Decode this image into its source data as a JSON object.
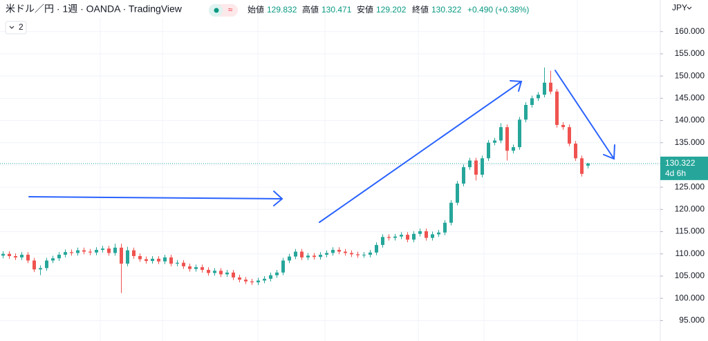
{
  "chart_data": {
    "type": "candlestick",
    "title": "米ドル／円 · 1週 · OANDA · TradingView",
    "badge": "≈",
    "pane_count": "2",
    "currency": "JPY",
    "ohlc_labels": [
      "始値",
      "高値",
      "安値",
      "終値"
    ],
    "change": "+0.490 (+0.38%)",
    "countdown": "4d 6h",
    "up_color": "#26a69a",
    "down_color": "#ef5350",
    "ylim": [
      90.4,
      167.1
    ],
    "yticks": [
      {
        "value": 95,
        "label": "95.000"
      },
      {
        "value": 100,
        "label": "100.000"
      },
      {
        "value": 105,
        "label": "105.000"
      },
      {
        "value": 110,
        "label": "110.000"
      },
      {
        "value": 115,
        "label": "115.000"
      },
      {
        "value": 120,
        "label": "120.000"
      },
      {
        "value": 125,
        "label": "125.000"
      },
      {
        "value": 130,
        "label": "130.000"
      },
      {
        "value": 135,
        "label": "135.000"
      },
      {
        "value": 140,
        "label": "140.000"
      },
      {
        "value": 145,
        "label": "145.000"
      },
      {
        "value": 150,
        "label": "150.000"
      },
      {
        "value": 155,
        "label": "155.000"
      },
      {
        "value": 160,
        "label": "160.000"
      }
    ],
    "grid": true,
    "open": [
      109.6,
      110.0,
      109.5,
      109.2,
      109.8,
      108.5,
      106.5,
      106.8,
      108.5,
      109.0,
      109.8,
      110.4,
      110.2,
      110.8,
      110.5,
      110.3,
      110.9,
      111.2,
      110.2,
      111.4,
      107.8,
      110.8,
      109.5,
      108.8,
      108.4,
      108.9,
      108.3,
      109.2,
      107.8,
      108.0,
      107.2,
      106.6,
      107.0,
      106.4,
      105.7,
      106.2,
      105.4,
      105.8,
      104.7,
      104.2,
      103.8,
      103.6,
      104.0,
      104.4,
      105.2,
      105.8,
      108.5,
      109.4,
      110.5,
      109.2,
      109.6,
      109.3,
      109.8,
      110.2,
      110.9,
      110.5,
      110.2,
      109.9,
      109.7,
      109.8,
      110.3,
      112.0,
      113.8,
      113.6,
      113.9,
      114.3,
      113.2,
      114.5,
      115.1,
      113.6,
      114.4,
      114.8,
      117.0,
      121.5,
      125.8,
      129.5,
      131.0,
      127.8,
      131.5,
      135.0,
      135.5,
      138.5,
      133.2,
      134.0,
      140.2,
      143.5,
      145.0,
      145.8,
      148.5,
      146.5,
      139.0,
      138.5,
      134.8,
      131.5,
      129.832
    ],
    "high": [
      110.6,
      110.6,
      110.1,
      110.4,
      110.4,
      109.1,
      107.4,
      109.1,
      109.6,
      110.4,
      111.0,
      111.0,
      111.4,
      111.4,
      111.1,
      111.5,
      111.8,
      111.8,
      112.3,
      112.3,
      111.6,
      111.4,
      110.1,
      109.4,
      109.5,
      109.5,
      109.8,
      109.8,
      108.6,
      108.6,
      107.8,
      107.6,
      107.6,
      107.0,
      106.8,
      106.8,
      106.4,
      106.4,
      105.3,
      104.8,
      104.4,
      104.6,
      105.0,
      105.8,
      106.4,
      109.1,
      110.0,
      111.1,
      111.1,
      110.2,
      110.2,
      110.4,
      110.8,
      111.5,
      111.5,
      111.1,
      110.8,
      110.5,
      110.4,
      110.9,
      112.6,
      114.4,
      114.4,
      114.5,
      114.9,
      114.9,
      115.1,
      115.7,
      115.7,
      115.0,
      115.4,
      117.6,
      122.1,
      126.4,
      130.1,
      131.6,
      131.6,
      132.1,
      135.6,
      136.1,
      139.4,
      139.1,
      134.6,
      140.8,
      144.1,
      145.6,
      146.4,
      151.9,
      151.2,
      147.1,
      139.6,
      139.1,
      135.4,
      132.1,
      130.471
    ],
    "low": [
      109.0,
      108.9,
      108.6,
      108.6,
      107.9,
      105.9,
      105.2,
      106.2,
      107.9,
      108.4,
      109.2,
      109.6,
      109.6,
      109.9,
      109.7,
      109.7,
      110.3,
      109.6,
      109.6,
      101.2,
      107.2,
      108.9,
      108.2,
      107.8,
      107.8,
      107.7,
      107.7,
      107.2,
      107.2,
      106.6,
      106.0,
      106.0,
      105.8,
      105.1,
      105.1,
      104.8,
      104.8,
      104.1,
      103.6,
      103.2,
      103.0,
      103.0,
      103.4,
      103.8,
      104.6,
      105.2,
      107.9,
      108.8,
      108.6,
      108.6,
      108.7,
      108.7,
      109.2,
      109.6,
      109.9,
      109.6,
      109.3,
      109.1,
      109.1,
      109.2,
      109.7,
      111.4,
      113.0,
      113.0,
      113.3,
      112.6,
      112.6,
      113.9,
      113.0,
      113.0,
      113.8,
      114.2,
      116.4,
      120.9,
      125.2,
      128.9,
      126.5,
      127.2,
      130.9,
      134.4,
      134.9,
      131.0,
      132.6,
      133.4,
      139.6,
      142.9,
      144.4,
      145.2,
      145.9,
      138.4,
      137.9,
      134.2,
      130.9,
      127.4,
      129.202
    ],
    "close": [
      110.0,
      109.5,
      109.2,
      109.8,
      108.5,
      106.5,
      106.8,
      108.5,
      109.0,
      109.8,
      110.4,
      110.2,
      110.8,
      110.5,
      110.3,
      110.9,
      111.2,
      110.2,
      111.4,
      107.8,
      110.8,
      109.5,
      108.8,
      108.4,
      108.9,
      108.3,
      109.2,
      107.8,
      108.0,
      107.2,
      106.6,
      107.0,
      106.4,
      105.7,
      106.2,
      105.4,
      105.8,
      104.7,
      104.2,
      103.8,
      103.6,
      104.0,
      104.4,
      105.2,
      105.8,
      108.5,
      109.4,
      110.5,
      109.2,
      109.6,
      109.3,
      109.8,
      110.2,
      110.9,
      110.5,
      110.2,
      109.9,
      109.7,
      109.8,
      110.3,
      112.0,
      113.8,
      113.6,
      113.9,
      114.3,
      113.2,
      114.5,
      115.1,
      113.6,
      114.4,
      114.8,
      117.0,
      121.5,
      125.8,
      129.5,
      131.0,
      127.8,
      131.5,
      135.0,
      135.5,
      138.5,
      133.2,
      134.0,
      140.2,
      143.5,
      145.0,
      145.8,
      148.5,
      146.5,
      139.0,
      138.5,
      134.8,
      131.5,
      128.0,
      130.322
    ]
  }
}
